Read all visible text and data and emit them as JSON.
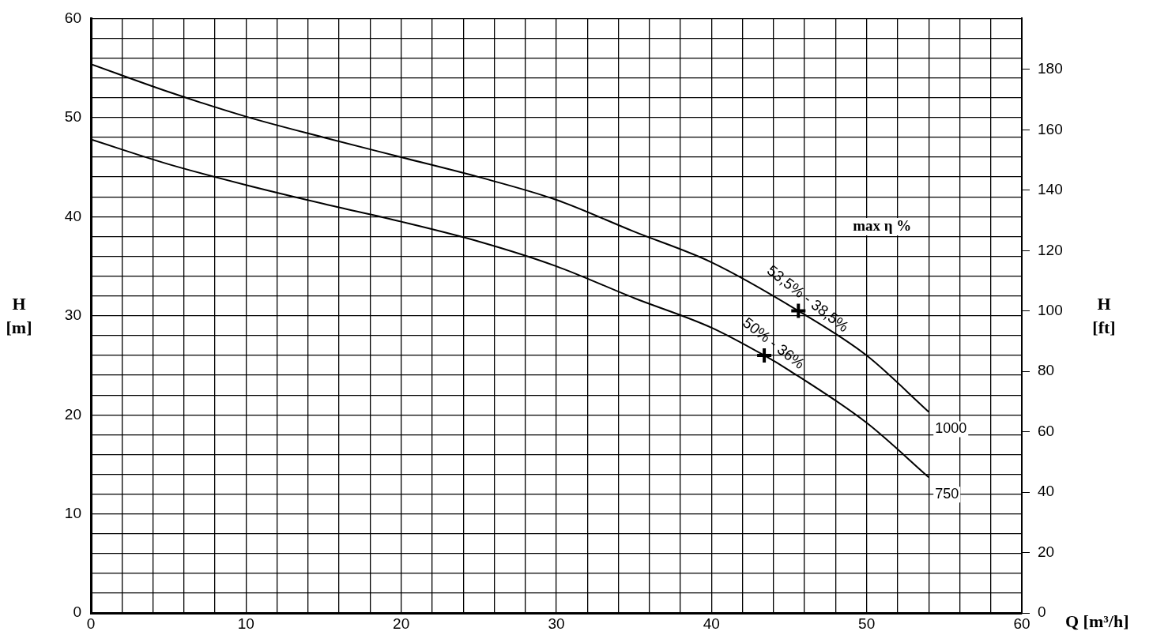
{
  "chart_data": {
    "type": "line",
    "xlabel": "Q [m³/h]",
    "ylabel": "H [m]",
    "y2label": "H [ft]",
    "xlim": [
      0,
      60
    ],
    "ylim": [
      0,
      60
    ],
    "y2lim": [
      0,
      196.85
    ],
    "xticks": [
      0,
      {
        "value": 2,
        "label": null
      },
      {
        "value": 4,
        "label": null
      },
      {
        "value": 6,
        "label": null
      },
      {
        "value": 8,
        "label": null
      },
      10,
      {
        "value": 12,
        "label": null
      },
      {
        "value": 14,
        "label": null
      },
      {
        "value": 16,
        "label": null
      },
      {
        "value": 18,
        "label": null
      },
      20,
      {
        "value": 22,
        "label": null
      },
      {
        "value": 24,
        "label": null
      },
      {
        "value": 26,
        "label": null
      },
      {
        "value": 28,
        "label": null
      },
      30,
      {
        "value": 32,
        "label": null
      },
      {
        "value": 34,
        "label": null
      },
      {
        "value": 36,
        "label": null
      },
      {
        "value": 38,
        "label": null
      },
      40,
      {
        "value": 42,
        "label": null
      },
      {
        "value": 44,
        "label": null
      },
      {
        "value": 46,
        "label": null
      },
      {
        "value": 48,
        "label": null
      },
      50,
      {
        "value": 52,
        "label": null
      },
      {
        "value": 54,
        "label": null
      },
      {
        "value": 56,
        "label": null
      },
      {
        "value": 58,
        "label": null
      },
      60
    ],
    "yticks": [
      0,
      {
        "value": 2,
        "label": null
      },
      {
        "value": 4,
        "label": null
      },
      {
        "value": 6,
        "label": null
      },
      {
        "value": 8,
        "label": null
      },
      10,
      {
        "value": 12,
        "label": null
      },
      {
        "value": 14,
        "label": null
      },
      {
        "value": 16,
        "label": null
      },
      {
        "value": 18,
        "label": null
      },
      20,
      {
        "value": 22,
        "label": null
      },
      {
        "value": 24,
        "label": null
      },
      {
        "value": 26,
        "label": null
      },
      {
        "value": 28,
        "label": null
      },
      30,
      {
        "value": 32,
        "label": null
      },
      {
        "value": 34,
        "label": null
      },
      {
        "value": 36,
        "label": null
      },
      {
        "value": 38,
        "label": null
      },
      40,
      {
        "value": 42,
        "label": null
      },
      {
        "value": 44,
        "label": null
      },
      {
        "value": 46,
        "label": null
      },
      {
        "value": 48,
        "label": null
      },
      50,
      {
        "value": 52,
        "label": null
      },
      {
        "value": 54,
        "label": null
      },
      {
        "value": 56,
        "label": null
      },
      {
        "value": 58,
        "label": null
      },
      60
    ],
    "y2ticks": [
      0,
      20,
      40,
      60,
      80,
      100,
      120,
      140,
      160,
      180
    ],
    "grid": true,
    "legend": false,
    "marker": "none",
    "line_style": "solid",
    "series": [
      {
        "name": "1000",
        "color": "#000000",
        "x": [
          0,
          5,
          10,
          15,
          20,
          25,
          30,
          35,
          40,
          45.6,
          50,
          54
        ],
        "values": [
          55.4,
          52.6,
          50.1,
          48,
          46,
          44,
          41.7,
          38.5,
          35.4,
          30.5,
          26,
          20.3
        ]
      },
      {
        "name": "750",
        "color": "#000000",
        "x": [
          0,
          5,
          10,
          15,
          20,
          25,
          30,
          35,
          40,
          43.4,
          45,
          50,
          54
        ],
        "values": [
          47.8,
          45.3,
          43.2,
          41.3,
          39.5,
          37.5,
          35,
          31.8,
          28.8,
          26,
          24.5,
          19.2,
          13.7
        ]
      },
      {
        "type": "scatter",
        "marker": "cross",
        "color": "#000000",
        "x": [
          45.6,
          43.4
        ],
        "values": [
          30.5,
          26
        ]
      }
    ],
    "annotations": [
      "max η %",
      {
        "text": "53,5% - 38,5%",
        "x": 45.6,
        "y": 30.5
      },
      {
        "text": "50% - 36%",
        "x": 43.4,
        "y": 26
      }
    ]
  }
}
